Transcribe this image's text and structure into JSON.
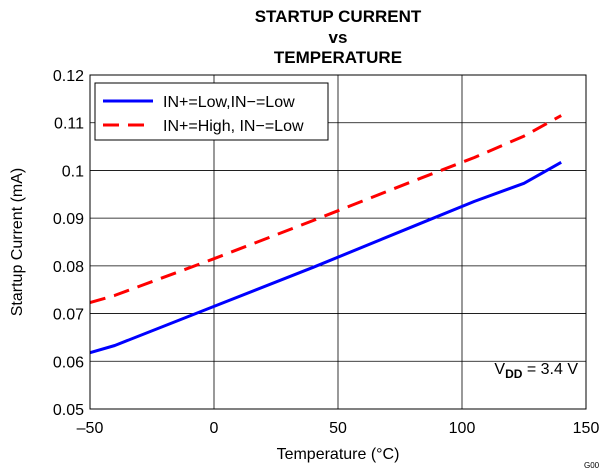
{
  "chart_data": {
    "type": "line",
    "title_lines": [
      "STARTUP CURRENT",
      "vs",
      "TEMPERATURE"
    ],
    "xlabel": "Temperature (°C)",
    "ylabel": "Startup Current (mA)",
    "xlim": [
      -50,
      150
    ],
    "ylim": [
      0.05,
      0.12
    ],
    "x_ticks": [
      -50,
      0,
      50,
      100,
      150
    ],
    "x_tick_labels": [
      "–50",
      "0",
      "50",
      "100",
      "150"
    ],
    "y_ticks": [
      0.05,
      0.06,
      0.07,
      0.08,
      0.09,
      0.1,
      0.11,
      0.12
    ],
    "y_tick_labels": [
      "0.05",
      "0.06",
      "0.07",
      "0.08",
      "0.09",
      "0.1",
      "0.11",
      "0.12"
    ],
    "grid": true,
    "legend_position": "top-left",
    "series": [
      {
        "name": "IN+=Low,IN−=Low",
        "color": "#0000ff",
        "dash": "solid",
        "x": [
          -50,
          -40,
          0,
          40,
          80,
          105,
          125,
          140
        ],
        "y": [
          0.0618,
          0.0633,
          0.0715,
          0.0797,
          0.0882,
          0.0935,
          0.0973,
          0.1017
        ]
      },
      {
        "name": "IN+=High, IN−=Low",
        "color": "#ff0000",
        "dash": "dashed",
        "x": [
          -50,
          -40,
          0,
          40,
          80,
          105,
          125,
          140
        ],
        "y": [
          0.0723,
          0.0738,
          0.0815,
          0.0895,
          0.0977,
          0.1027,
          0.1072,
          0.1115
        ]
      }
    ],
    "annotation": {
      "prefix": "V",
      "subscript": "DD",
      "suffix": " = 3.4 V",
      "position": "bottom-right"
    },
    "figure_code": "G00"
  }
}
